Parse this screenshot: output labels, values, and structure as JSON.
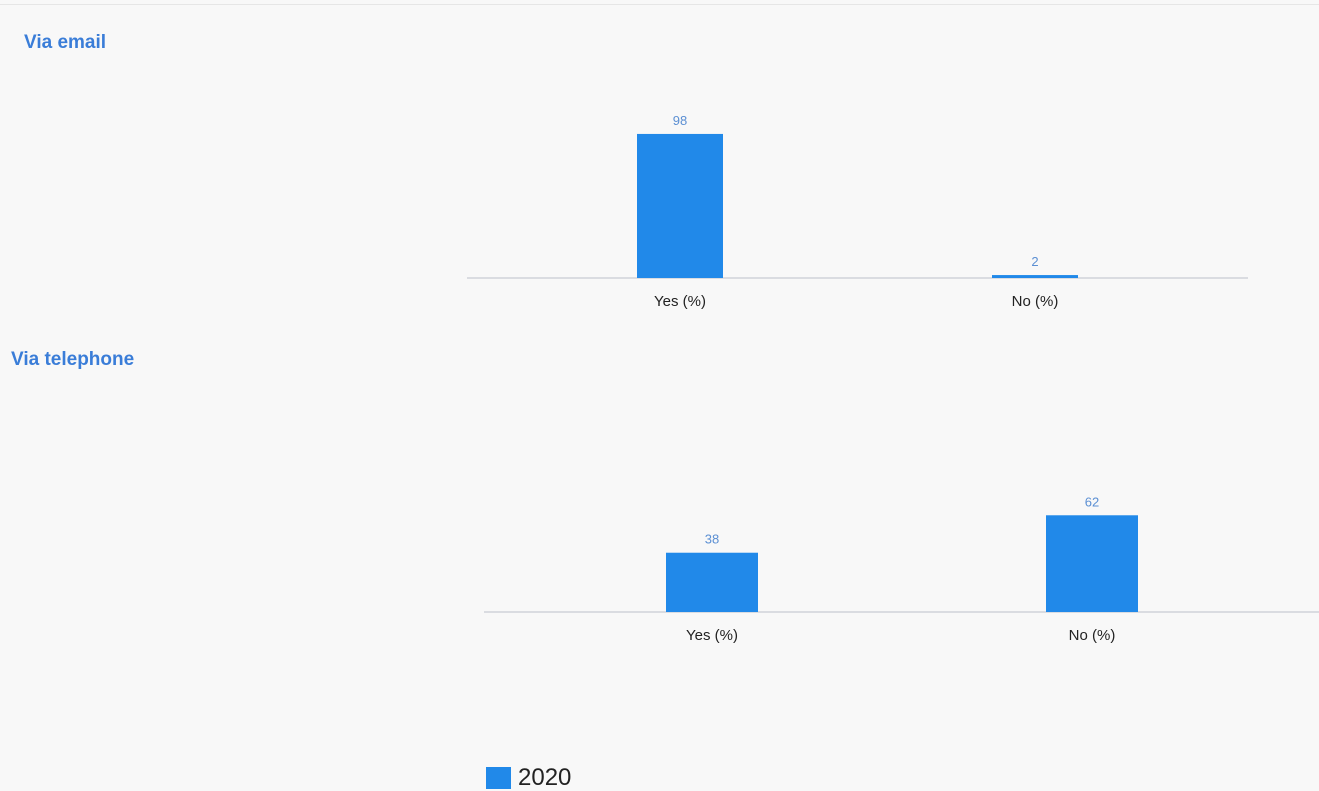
{
  "colors": {
    "bar": "#2189e9",
    "value_label": "#5b8fd3",
    "axis_line": "#cfd3d9",
    "title": "#3a7dd8"
  },
  "chart_data": [
    {
      "type": "bar",
      "title": "Via email",
      "categories": [
        "Yes (%)",
        "No (%)"
      ],
      "series": [
        {
          "name": "2020",
          "values": [
            98,
            2
          ]
        }
      ],
      "ylim": [
        0,
        100
      ],
      "grid": false,
      "legend": "bottom"
    },
    {
      "type": "bar",
      "title": "Via telephone",
      "categories": [
        "Yes (%)",
        "No (%)"
      ],
      "series": [
        {
          "name": "2020",
          "values": [
            38,
            62
          ]
        }
      ],
      "ylim": [
        0,
        100
      ],
      "grid": false,
      "legend": "bottom"
    }
  ],
  "legend": {
    "label": "2020"
  }
}
